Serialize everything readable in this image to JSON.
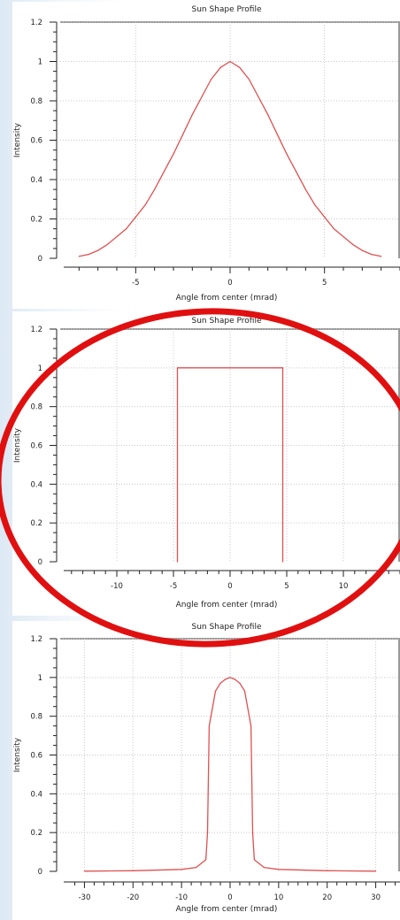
{
  "chart_data": [
    {
      "type": "line",
      "title": "Sun Shape Profile",
      "xlabel": "Angle from center (mrad)",
      "ylabel": "Intensity",
      "xlim": [
        -9,
        9
      ],
      "ylim": [
        0,
        1.2
      ],
      "x_ticks": [
        -5,
        0,
        5
      ],
      "y_ticks": [
        0,
        0.2,
        0.4,
        0.6,
        0.8,
        1,
        1.2
      ],
      "grid": true,
      "series": [
        {
          "color": "#e05050",
          "x": [
            -8,
            -7.5,
            -7,
            -6.5,
            -6,
            -5.5,
            -5,
            -4.5,
            -4,
            -3.5,
            -3,
            -2.5,
            -2,
            -1.5,
            -1,
            -0.5,
            0,
            0.5,
            1,
            1.5,
            2,
            2.5,
            3,
            3.5,
            4,
            4.5,
            5,
            5.5,
            6,
            6.5,
            7,
            7.5,
            8
          ],
          "y": [
            0.01,
            0.02,
            0.04,
            0.07,
            0.11,
            0.15,
            0.21,
            0.27,
            0.35,
            0.44,
            0.53,
            0.63,
            0.73,
            0.82,
            0.91,
            0.97,
            1.0,
            0.97,
            0.91,
            0.82,
            0.73,
            0.63,
            0.53,
            0.44,
            0.35,
            0.27,
            0.21,
            0.15,
            0.11,
            0.07,
            0.04,
            0.02,
            0.01
          ]
        }
      ]
    },
    {
      "type": "line",
      "title": "Sun Shape Profile",
      "xlabel": "Angle from center (mrad)",
      "ylabel": "Intensity",
      "xlim": [
        -15,
        15
      ],
      "ylim": [
        0,
        1.2
      ],
      "x_ticks": [
        -10,
        -5,
        0,
        5,
        10
      ],
      "y_ticks": [
        0,
        0.2,
        0.4,
        0.6,
        0.8,
        1,
        1.2
      ],
      "grid": true,
      "series": [
        {
          "color": "#e05050",
          "x": [
            -4.65,
            -4.65,
            4.65,
            4.65
          ],
          "y": [
            0,
            1,
            1,
            0
          ]
        }
      ]
    },
    {
      "type": "line",
      "title": "Sun Shape Profile",
      "xlabel": "Angle from center (mrad)",
      "ylabel": "Intensity",
      "xlim": [
        -35,
        35
      ],
      "ylim": [
        0,
        1.2
      ],
      "x_ticks": [
        -30,
        -20,
        -10,
        0,
        10,
        20,
        30
      ],
      "y_ticks": [
        0,
        0.2,
        0.4,
        0.6,
        0.8,
        1,
        1.2
      ],
      "grid": true,
      "series": [
        {
          "color": "#e05050",
          "x": [
            -30,
            -20,
            -10,
            -7,
            -5,
            -4.65,
            -4.3,
            -3,
            -2,
            -1,
            0,
            1,
            2,
            3,
            4.3,
            4.65,
            5,
            7,
            10,
            20,
            30
          ],
          "y": [
            0.001,
            0.003,
            0.01,
            0.02,
            0.06,
            0.2,
            0.75,
            0.93,
            0.97,
            0.99,
            1.0,
            0.99,
            0.97,
            0.93,
            0.75,
            0.2,
            0.06,
            0.02,
            0.01,
            0.003,
            0.001
          ]
        }
      ]
    }
  ],
  "annotation": {
    "color": "#e01010"
  }
}
